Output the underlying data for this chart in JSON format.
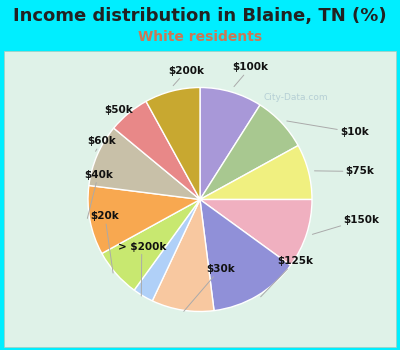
{
  "title": "Income distribution in Blaine, TN (%)",
  "subtitle": "White residents",
  "labels": [
    "$100k",
    "$10k",
    "$75k",
    "$150k",
    "$125k",
    "$30k",
    "> $200k",
    "$20k",
    "$40k",
    "$60k",
    "$50k",
    "$200k"
  ],
  "values": [
    9,
    8,
    8,
    10,
    13,
    9,
    3,
    7,
    10,
    9,
    6,
    8
  ],
  "colors": [
    "#a898d8",
    "#a8c890",
    "#f0f080",
    "#f0b0c0",
    "#9090d8",
    "#f8c8a0",
    "#b0d0f8",
    "#c8e870",
    "#f8a850",
    "#c8c0a8",
    "#e88888",
    "#c8a830"
  ],
  "background_color": "#dff2e8",
  "outer_bg_color": "#00eeff",
  "title_fontsize": 13,
  "subtitle_fontsize": 10,
  "subtitle_color": "#cc7755",
  "watermark": "City-Data.com",
  "label_fontsize": 7.5
}
